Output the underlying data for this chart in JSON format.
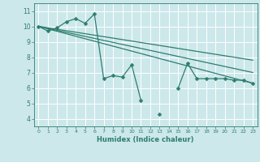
{
  "background_color": "#cce8ea",
  "grid_color": "#ffffff",
  "line_color": "#2e7d6e",
  "xlabel": "Humidex (Indice chaleur)",
  "xlim": [
    -0.5,
    23.5
  ],
  "ylim": [
    3.5,
    11.5
  ],
  "xticks": [
    0,
    1,
    2,
    3,
    4,
    5,
    6,
    7,
    8,
    9,
    10,
    11,
    12,
    13,
    14,
    15,
    16,
    17,
    18,
    19,
    20,
    21,
    22,
    23
  ],
  "yticks": [
    4,
    5,
    6,
    7,
    8,
    9,
    10,
    11
  ],
  "series": [
    {
      "x": [
        0,
        1,
        2,
        3,
        4,
        5,
        6,
        7,
        8,
        9,
        10,
        11,
        12,
        13,
        14,
        15,
        16,
        17,
        18,
        19,
        20,
        21,
        22,
        23
      ],
      "y": [
        10.0,
        9.7,
        9.9,
        10.3,
        10.5,
        10.2,
        10.8,
        6.6,
        6.8,
        6.7,
        7.5,
        5.2,
        null,
        4.3,
        null,
        6.0,
        7.6,
        6.6,
        6.6,
        6.6,
        6.6,
        6.5,
        6.5,
        6.3
      ],
      "marker": "D",
      "markersize": 2.5,
      "linewidth": 0.9
    },
    {
      "x": [
        0,
        23
      ],
      "y": [
        10.0,
        6.3
      ],
      "marker": null,
      "markersize": 0,
      "linewidth": 0.9
    },
    {
      "x": [
        0,
        23
      ],
      "y": [
        10.0,
        7.0
      ],
      "marker": null,
      "markersize": 0,
      "linewidth": 0.9
    },
    {
      "x": [
        0,
        23
      ],
      "y": [
        10.0,
        7.8
      ],
      "marker": null,
      "markersize": 0,
      "linewidth": 0.9
    }
  ]
}
